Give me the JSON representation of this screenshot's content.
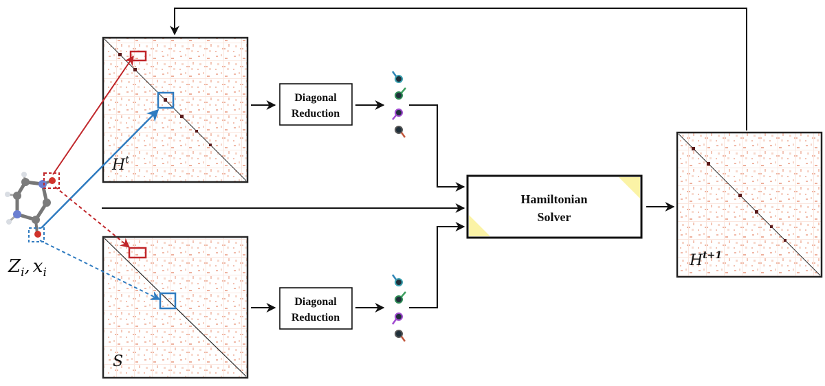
{
  "diagram": {
    "inputs_label": "Z_i, x_i",
    "inputs_symbols": {
      "Z": "Z",
      "i": "i",
      "comma": ",",
      "x": "x"
    },
    "matrix_H": {
      "symbol": "H",
      "superscript": "t"
    },
    "matrix_S": {
      "symbol": "S"
    },
    "matrix_H_next": {
      "symbol": "H",
      "superscript": "t+1"
    },
    "reduction_top": {
      "line1": "Diagonal",
      "line2": "Reduction"
    },
    "reduction_bottom": {
      "line1": "Diagonal",
      "line2": "Reduction"
    },
    "solver": {
      "line1": "Hamiltonian",
      "line2": "Solver"
    }
  },
  "colors": {
    "red_highlight": "#c0262a",
    "blue_highlight": "#2f7bc0",
    "matrix_dot": "#5a1b1b",
    "solver_corner": "#fbf3a6",
    "arrow": "#111111"
  },
  "icons": {
    "molecule": "molecule-icon",
    "features": "feature-vector-icon"
  }
}
